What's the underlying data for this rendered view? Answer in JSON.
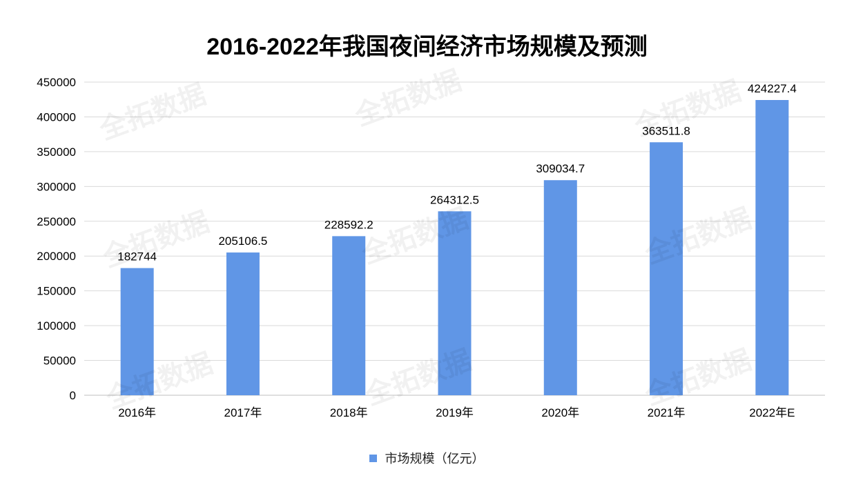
{
  "colors": {
    "bar": "#6096E6",
    "grid": "#d9d9d9",
    "text": "#000000"
  },
  "watermark_text": "全拓数据",
  "chart_data": {
    "type": "bar",
    "title": "2016-2022年我国夜间经济市场规模及预测",
    "categories": [
      "2016年",
      "2017年",
      "2018年",
      "2019年",
      "2020年",
      "2021年",
      "2022年E"
    ],
    "series": [
      {
        "name": "市场规模（亿元）",
        "values": [
          182744,
          205106.5,
          228592.2,
          264312.5,
          309034.7,
          363511.8,
          424227.4
        ]
      }
    ],
    "data_labels": [
      "182744",
      "205106.5",
      "228592.2",
      "264312.5",
      "309034.7",
      "363511.8",
      "424227.4"
    ],
    "y_ticks": [
      "0",
      "50000",
      "100000",
      "150000",
      "200000",
      "250000",
      "300000",
      "350000",
      "400000",
      "450000"
    ],
    "ylim": [
      0,
      450000
    ],
    "grid": true,
    "legend": "bottom"
  }
}
